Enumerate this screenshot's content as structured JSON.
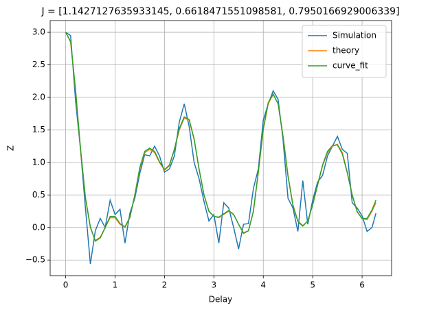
{
  "chart_data": {
    "type": "line",
    "title": "J = [1.1427127635933145, 0.6618471551098581, 0.7950166929006339]",
    "xlabel": "Delay",
    "ylabel": "Z",
    "x": [
      0,
      0.1,
      0.2,
      0.3,
      0.4,
      0.5,
      0.6,
      0.7,
      0.8,
      0.9,
      1.0,
      1.1,
      1.2,
      1.3,
      1.4,
      1.5,
      1.6,
      1.7,
      1.8,
      1.9,
      2.0,
      2.1,
      2.2,
      2.3,
      2.4,
      2.5,
      2.6,
      2.7,
      2.8,
      2.9,
      3.0,
      3.1,
      3.2,
      3.3,
      3.4,
      3.5,
      3.6,
      3.7,
      3.8,
      3.9,
      4.0,
      4.1,
      4.2,
      4.3,
      4.4,
      4.5,
      4.6,
      4.7,
      4.8,
      4.9,
      5.0,
      5.1,
      5.2,
      5.3,
      5.4,
      5.5,
      5.6,
      5.7,
      5.8,
      5.9,
      6.0,
      6.1,
      6.2,
      6.28
    ],
    "series": [
      {
        "name": "Simulation",
        "color": "#1f77b4",
        "values": [
          3.0,
          2.95,
          1.95,
          1.2,
          0.3,
          -0.56,
          -0.05,
          0.14,
          0.0,
          0.42,
          0.2,
          0.28,
          -0.24,
          0.22,
          0.45,
          0.83,
          1.12,
          1.1,
          1.25,
          1.1,
          0.85,
          0.9,
          1.1,
          1.62,
          1.9,
          1.55,
          1.0,
          0.75,
          0.4,
          0.1,
          0.2,
          -0.24,
          0.38,
          0.3,
          0.0,
          -0.33,
          0.05,
          0.06,
          0.6,
          0.9,
          1.65,
          1.9,
          2.1,
          1.97,
          1.35,
          0.45,
          0.3,
          -0.06,
          0.72,
          0.05,
          0.42,
          0.7,
          0.8,
          1.1,
          1.25,
          1.4,
          1.2,
          1.14,
          0.38,
          0.3,
          0.18,
          -0.06,
          0.0,
          0.22
        ]
      },
      {
        "name": "theory",
        "color": "#ff7f0e",
        "values": [
          3.0,
          2.85,
          2.1,
          1.2,
          0.45,
          0.0,
          -0.2,
          -0.15,
          0.0,
          0.15,
          0.15,
          0.05,
          0.0,
          0.15,
          0.5,
          0.9,
          1.15,
          1.2,
          1.15,
          1.0,
          0.88,
          0.95,
          1.2,
          1.5,
          1.68,
          1.65,
          1.35,
          0.9,
          0.5,
          0.25,
          0.17,
          0.15,
          0.2,
          0.25,
          0.2,
          0.05,
          -0.08,
          -0.05,
          0.25,
          0.85,
          1.5,
          1.9,
          2.05,
          1.9,
          1.4,
          0.8,
          0.35,
          0.1,
          0.03,
          0.1,
          0.35,
          0.65,
          0.95,
          1.15,
          1.25,
          1.28,
          1.15,
          0.85,
          0.5,
          0.25,
          0.13,
          0.12,
          0.25,
          0.38
        ]
      },
      {
        "name": "curve_fit",
        "color": "#2ca02c",
        "values": [
          3.0,
          2.86,
          2.12,
          1.22,
          0.46,
          0.01,
          -0.21,
          -0.16,
          0.0,
          0.17,
          0.17,
          0.06,
          0.01,
          0.16,
          0.5,
          0.92,
          1.17,
          1.22,
          1.17,
          1.01,
          0.89,
          0.96,
          1.2,
          1.52,
          1.7,
          1.66,
          1.36,
          0.9,
          0.5,
          0.25,
          0.17,
          0.16,
          0.21,
          0.26,
          0.2,
          0.05,
          -0.09,
          -0.05,
          0.25,
          0.86,
          1.52,
          1.92,
          2.05,
          1.9,
          1.4,
          0.79,
          0.34,
          0.09,
          0.02,
          0.1,
          0.35,
          0.66,
          0.96,
          1.17,
          1.26,
          1.27,
          1.13,
          0.84,
          0.5,
          0.24,
          0.14,
          0.14,
          0.27,
          0.42
        ]
      }
    ],
    "xlim": [
      -0.314,
      6.597
    ],
    "ylim": [
      -0.74,
      3.18
    ],
    "xticks": [
      0,
      1,
      2,
      3,
      4,
      5,
      6
    ],
    "yticks": [
      {
        "value": -0.5,
        "label": "−0.5"
      },
      {
        "value": 0,
        "label": "0.0"
      },
      {
        "value": 0.5,
        "label": "0.5"
      },
      {
        "value": 1,
        "label": "1.0"
      },
      {
        "value": 1.5,
        "label": "1.5"
      },
      {
        "value": 2,
        "label": "2.0"
      },
      {
        "value": 2.5,
        "label": "2.5"
      },
      {
        "value": 3,
        "label": "3.0"
      }
    ],
    "grid": true,
    "legend": "upper right"
  }
}
